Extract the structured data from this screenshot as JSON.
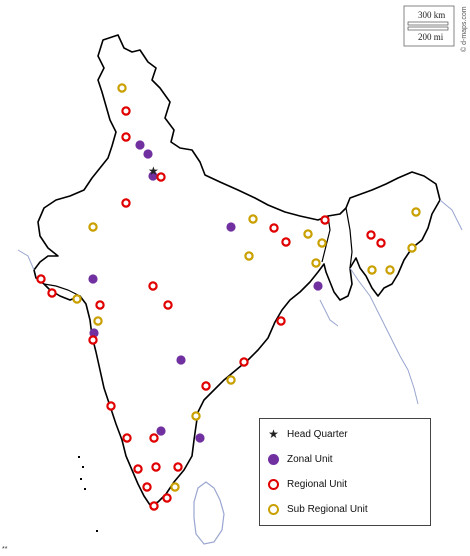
{
  "scale": {
    "km": "300 km",
    "mi": "200 mi"
  },
  "credit": "© d-maps.com",
  "legend": {
    "items": [
      {
        "label": "Head Quarter",
        "icon": "star-icon"
      },
      {
        "label": "Zonal Unit",
        "icon": "purple-dot-icon"
      },
      {
        "label": "Regional Unit",
        "icon": "red-ring-icon"
      },
      {
        "label": "Sub Regional Unit",
        "icon": "yellow-ring-icon"
      }
    ]
  },
  "colors": {
    "zonal": "#7030a0",
    "regional": "#e00000",
    "subregional": "#c9a000",
    "border": "#000000",
    "coast": "#9aa6d0"
  },
  "footnote": "**"
}
